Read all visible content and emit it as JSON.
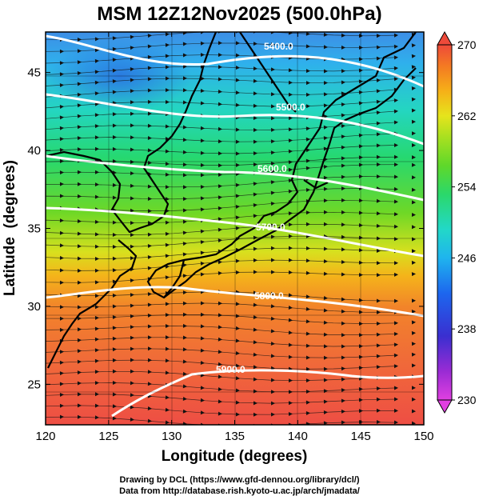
{
  "title": "MSM 12Z12Nov2025 (500.0hPa)",
  "xaxis": {
    "label": "Longitude (degrees)",
    "min": 120,
    "max": 150,
    "ticks": [
      "120",
      "125",
      "130",
      "135",
      "140",
      "145",
      "150"
    ]
  },
  "yaxis": {
    "label": "Latitude  (degrees)",
    "min": 22.4,
    "max": 47.6,
    "ticks": [
      "25",
      "30",
      "35",
      "40",
      "45"
    ]
  },
  "colorbar": {
    "min": 230,
    "max": 270,
    "ticks": [
      "230",
      "238",
      "246",
      "254",
      "262",
      "270"
    ],
    "colors": [
      "#e040e0",
      "#9a2bd4",
      "#3a2fd0",
      "#1d66ee",
      "#1fb4ee",
      "#22d8c8",
      "#2bd86a",
      "#5fd82a",
      "#a8e020",
      "#e6e41c",
      "#f6b018",
      "#f47a22",
      "#ee4a3a"
    ]
  },
  "contours": [
    {
      "label": "5400.0"
    },
    {
      "label": "5500.0"
    },
    {
      "label": "5600.0"
    },
    {
      "label": "5700.0"
    },
    {
      "label": "5800.0"
    },
    {
      "label": "5900.0"
    }
  ],
  "footer": {
    "line1": "Drawing by DCL (https://www.gfd-dennou.org/library/dcl/)",
    "line2": "Data from http://database.rish.kyoto-u.ac.jp/arch/jmadata/"
  }
}
